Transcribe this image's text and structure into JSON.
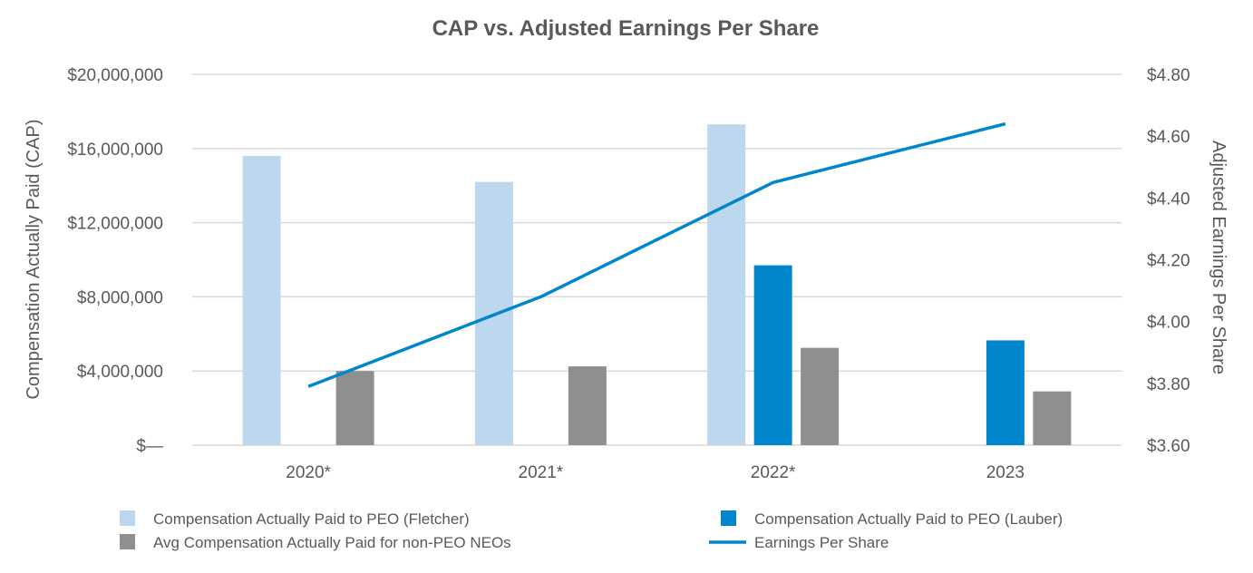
{
  "chart_data": {
    "type": "bar",
    "title": "CAP vs. Adjusted Earnings Per Share",
    "categories": [
      "2020*",
      "2021*",
      "2022*",
      "2023"
    ],
    "ylabel": "Compensation Actually Paid (CAP)",
    "y2label": "Adjusted Earnings Per Share",
    "ylim": [
      0,
      20000000
    ],
    "y2lim": [
      3.6,
      4.8
    ],
    "yticks": [
      "$—",
      "$4,000,000",
      "$8,000,000",
      "$12,000,000",
      "$16,000,000",
      "$20,000,000"
    ],
    "y2ticks": [
      "$3.60",
      "$3.80",
      "$4.00",
      "$4.20",
      "$4.40",
      "$4.60",
      "$4.80"
    ],
    "grid": true,
    "legend_position": "bottom",
    "series": [
      {
        "name": "Compensation Actually Paid to PEO (Fletcher)",
        "kind": "bar",
        "axis": "left",
        "color": "#bdd7ee",
        "values": [
          15600000,
          14200000,
          17300000,
          null
        ]
      },
      {
        "name": "Compensation Actually Paid to PEO (Lauber)",
        "kind": "bar",
        "axis": "left",
        "color": "#0086cc",
        "values": [
          null,
          null,
          9700000,
          5650000
        ]
      },
      {
        "name": "Avg Compensation Actually Paid for non-PEO NEOs",
        "kind": "bar",
        "axis": "left",
        "color": "#8f8f8f",
        "values": [
          4000000,
          4250000,
          5250000,
          2900000
        ]
      },
      {
        "name": "Earnings Per Share",
        "kind": "line",
        "axis": "right",
        "color": "#0086cc",
        "values": [
          3.79,
          4.08,
          4.45,
          4.64
        ]
      }
    ]
  }
}
